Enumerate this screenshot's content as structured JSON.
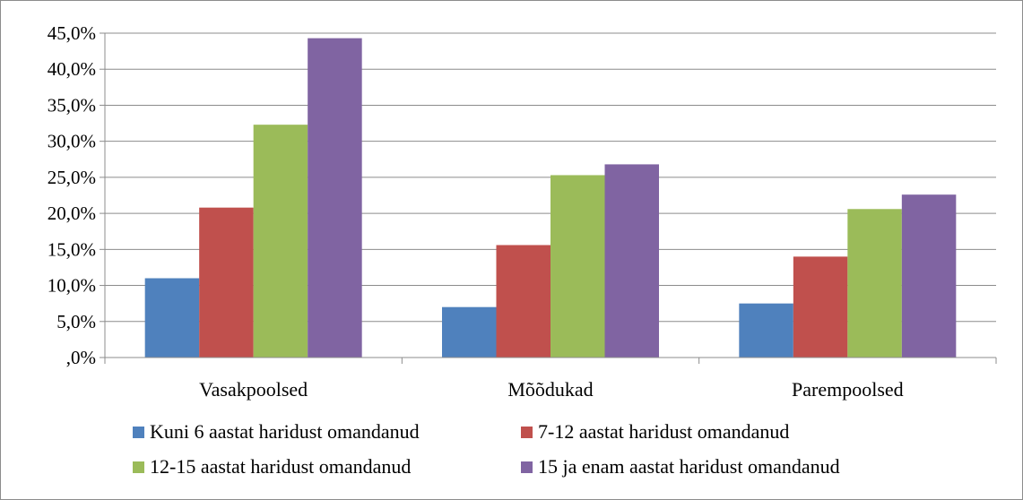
{
  "chart_data": {
    "type": "bar",
    "title": "",
    "xlabel": "",
    "ylabel": "",
    "categories": [
      "Vasakpoolsed",
      "Mõõdukad",
      "Parempoolsed"
    ],
    "series": [
      {
        "name": "Kuni 6 aastat haridust omandanud",
        "color": "#4f81bd",
        "values": [
          11.0,
          7.0,
          7.5
        ]
      },
      {
        "name": "7-12 aastat haridust omandanud",
        "color": "#c0504d",
        "values": [
          20.8,
          15.6,
          14.0
        ]
      },
      {
        "name": "12-15 aastat haridust omandanud",
        "color": "#9bbb59",
        "values": [
          32.3,
          25.3,
          20.6
        ]
      },
      {
        "name": "15 ja enam aastat haridust omandanud",
        "color": "#8064a2",
        "values": [
          44.3,
          26.8,
          22.6
        ]
      }
    ],
    "ylim": [
      0,
      45
    ],
    "yticks": [
      0,
      5,
      10,
      15,
      20,
      25,
      30,
      35,
      40,
      45
    ],
    "ytick_labels": [
      ",0%",
      "5,0%",
      "10,0%",
      "15,0%",
      "20,0%",
      "25,0%",
      "30,0%",
      "35,0%",
      "40,0%",
      "45,0%"
    ],
    "grid": true,
    "legend_position": "bottom"
  }
}
